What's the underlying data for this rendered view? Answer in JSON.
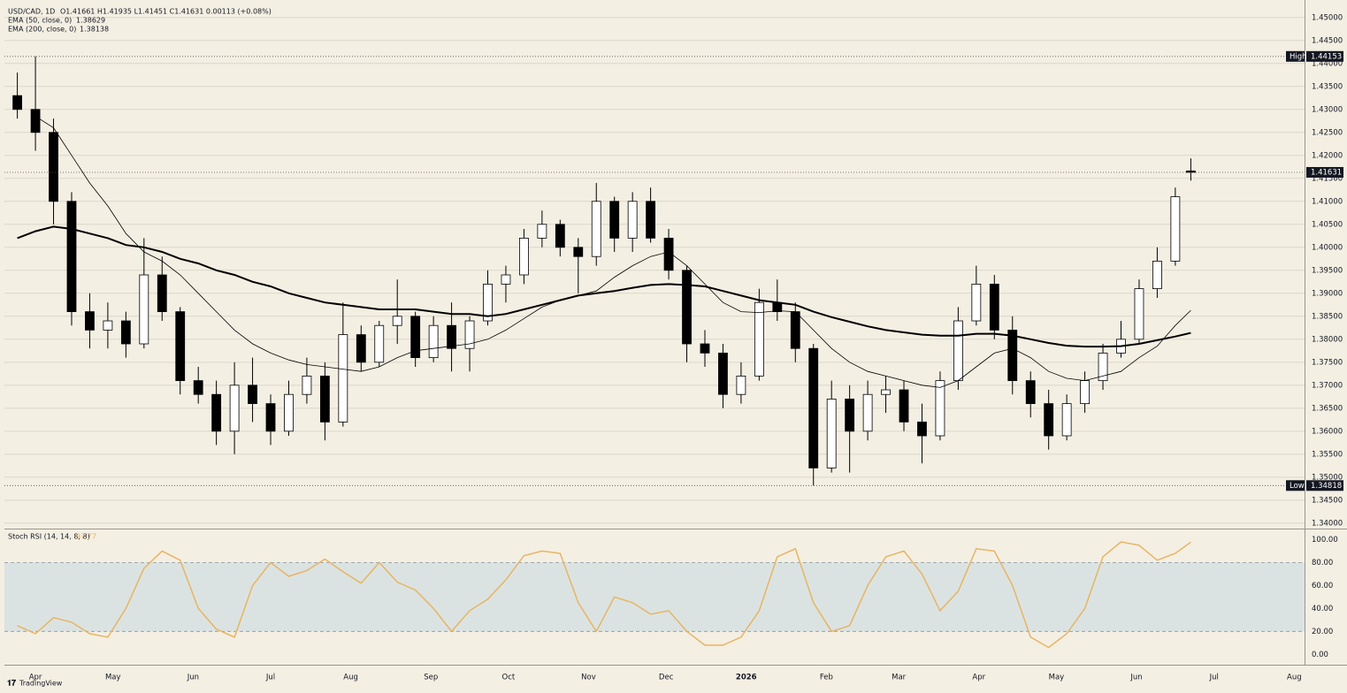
{
  "header": {
    "symbol": "USD/CAD, 1D",
    "ohlc": "O1.41661 H1.41935 L1.41451 C1.41631 0.00113 (+0.08%)",
    "brand": "TradingView"
  },
  "chart_data": [
    {
      "type": "candlestick",
      "x": [
        -7,
        0,
        7,
        14,
        21,
        28,
        35,
        42,
        49,
        56,
        63,
        70,
        77,
        84,
        91,
        98,
        105,
        112,
        119,
        126,
        133,
        140,
        147,
        154,
        161,
        168,
        175,
        182,
        189,
        196,
        203,
        210,
        217,
        224,
        231,
        238,
        245,
        252,
        259,
        266,
        273,
        280,
        287,
        294,
        301,
        308,
        315,
        322,
        329,
        336,
        343,
        350,
        357,
        364,
        371,
        378,
        385,
        392,
        399,
        406,
        413,
        420,
        427,
        434,
        441,
        447
      ],
      "open": [
        1.433,
        1.43,
        1.425,
        1.41,
        1.386,
        1.382,
        1.384,
        1.379,
        1.394,
        1.386,
        1.371,
        1.368,
        1.36,
        1.37,
        1.366,
        1.36,
        1.368,
        1.372,
        1.362,
        1.381,
        1.375,
        1.383,
        1.385,
        1.376,
        1.383,
        1.378,
        1.384,
        1.392,
        1.394,
        1.402,
        1.405,
        1.4,
        1.398,
        1.41,
        1.402,
        1.41,
        1.402,
        1.395,
        1.379,
        1.377,
        1.368,
        1.372,
        1.388,
        1.386,
        1.378,
        1.352,
        1.367,
        1.36,
        1.368,
        1.369,
        1.362,
        1.359,
        1.371,
        1.384,
        1.392,
        1.382,
        1.371,
        1.366,
        1.359,
        1.366,
        1.371,
        1.377,
        1.38,
        1.391,
        1.397,
        1.41661
      ],
      "high": [
        1.438,
        1.44153,
        1.428,
        1.412,
        1.39,
        1.388,
        1.386,
        1.402,
        1.398,
        1.387,
        1.374,
        1.371,
        1.375,
        1.376,
        1.368,
        1.371,
        1.376,
        1.375,
        1.388,
        1.383,
        1.384,
        1.393,
        1.386,
        1.385,
        1.388,
        1.385,
        1.395,
        1.396,
        1.404,
        1.408,
        1.406,
        1.402,
        1.414,
        1.411,
        1.412,
        1.413,
        1.404,
        1.396,
        1.382,
        1.379,
        1.375,
        1.391,
        1.393,
        1.388,
        1.379,
        1.371,
        1.37,
        1.371,
        1.372,
        1.371,
        1.366,
        1.373,
        1.387,
        1.396,
        1.394,
        1.385,
        1.373,
        1.369,
        1.368,
        1.373,
        1.379,
        1.384,
        1.393,
        1.4,
        1.413,
        1.41935
      ],
      "low": [
        1.428,
        1.421,
        1.405,
        1.383,
        1.378,
        1.378,
        1.376,
        1.378,
        1.384,
        1.368,
        1.366,
        1.357,
        1.355,
        1.362,
        1.357,
        1.359,
        1.366,
        1.358,
        1.361,
        1.373,
        1.374,
        1.379,
        1.374,
        1.375,
        1.373,
        1.373,
        1.383,
        1.388,
        1.392,
        1.4,
        1.398,
        1.39,
        1.396,
        1.399,
        1.399,
        1.401,
        1.393,
        1.375,
        1.374,
        1.365,
        1.366,
        1.371,
        1.384,
        1.375,
        1.34818,
        1.351,
        1.351,
        1.358,
        1.364,
        1.36,
        1.353,
        1.358,
        1.369,
        1.383,
        1.38,
        1.368,
        1.363,
        1.356,
        1.358,
        1.364,
        1.369,
        1.376,
        1.379,
        1.389,
        1.396,
        1.41451
      ],
      "close": [
        1.43,
        1.425,
        1.41,
        1.386,
        1.382,
        1.384,
        1.379,
        1.394,
        1.386,
        1.371,
        1.368,
        1.36,
        1.37,
        1.366,
        1.36,
        1.368,
        1.372,
        1.362,
        1.381,
        1.375,
        1.383,
        1.385,
        1.376,
        1.383,
        1.378,
        1.384,
        1.392,
        1.394,
        1.402,
        1.405,
        1.4,
        1.398,
        1.41,
        1.402,
        1.41,
        1.402,
        1.395,
        1.379,
        1.377,
        1.368,
        1.372,
        1.388,
        1.386,
        1.378,
        1.352,
        1.367,
        1.36,
        1.368,
        1.369,
        1.362,
        1.359,
        1.371,
        1.384,
        1.392,
        1.382,
        1.371,
        1.366,
        1.359,
        1.366,
        1.371,
        1.377,
        1.38,
        1.391,
        1.397,
        1.411,
        1.41631
      ],
      "up_color": "#ffffff",
      "down_color": "#000000",
      "series": [
        {
          "name": "EMA (50, close, 0)",
          "color": "#000000",
          "width": 0.8,
          "values": [
            null,
            1.4285,
            1.426,
            1.42,
            1.414,
            1.409,
            1.403,
            1.399,
            1.397,
            1.394,
            1.39,
            1.386,
            1.382,
            1.379,
            1.377,
            1.3755,
            1.3745,
            1.374,
            1.3735,
            1.373,
            1.374,
            1.376,
            1.3775,
            1.378,
            1.3785,
            1.379,
            1.38,
            1.382,
            1.3845,
            1.387,
            1.3885,
            1.3895,
            1.3905,
            1.3935,
            1.396,
            1.398,
            1.399,
            1.396,
            1.392,
            1.388,
            1.386,
            1.3858,
            1.3862,
            1.386,
            1.382,
            1.378,
            1.375,
            1.373,
            1.372,
            1.371,
            1.37,
            1.3695,
            1.371,
            1.374,
            1.377,
            1.378,
            1.376,
            1.373,
            1.3715,
            1.371,
            1.372,
            1.373,
            1.376,
            1.3785,
            1.383,
            1.38629
          ]
        },
        {
          "name": "EMA (200, close, 0)",
          "color": "#000000",
          "width": 2,
          "values": [
            1.402,
            1.4035,
            1.4045,
            1.404,
            1.403,
            1.402,
            1.4005,
            1.4,
            1.399,
            1.3975,
            1.3965,
            1.395,
            1.394,
            1.3925,
            1.3915,
            1.39,
            1.389,
            1.388,
            1.3875,
            1.387,
            1.3865,
            1.3865,
            1.3865,
            1.386,
            1.3855,
            1.3855,
            1.385,
            1.3855,
            1.3865,
            1.3875,
            1.3885,
            1.3895,
            1.39,
            1.3905,
            1.3912,
            1.3918,
            1.392,
            1.3918,
            1.3915,
            1.3905,
            1.3895,
            1.3885,
            1.388,
            1.3875,
            1.386,
            1.3848,
            1.3838,
            1.3828,
            1.382,
            1.3815,
            1.381,
            1.3808,
            1.3808,
            1.3812,
            1.3812,
            1.3808,
            1.38,
            1.3792,
            1.3786,
            1.3784,
            1.3784,
            1.3785,
            1.379,
            1.3798,
            1.3806,
            1.38138
          ]
        }
      ],
      "xlim": [
        -12,
        491
      ],
      "ylim": [
        1.3392,
        1.4538
      ],
      "yticks": [
        {
          "value": 1.34,
          "label": "1.34000"
        },
        {
          "value": 1.345,
          "label": "1.34500"
        },
        {
          "value": 1.35,
          "label": "1.35000"
        },
        {
          "value": 1.355,
          "label": "1.35500"
        },
        {
          "value": 1.36,
          "label": "1.36000"
        },
        {
          "value": 1.365,
          "label": "1.36500"
        },
        {
          "value": 1.37,
          "label": "1.37000"
        },
        {
          "value": 1.375,
          "label": "1.37500"
        },
        {
          "value": 1.38,
          "label": "1.38000"
        },
        {
          "value": 1.385,
          "label": "1.38500"
        },
        {
          "value": 1.39,
          "label": "1.39000"
        },
        {
          "value": 1.395,
          "label": "1.39500"
        },
        {
          "value": 1.4,
          "label": "1.40000"
        },
        {
          "value": 1.405,
          "label": "1.40500"
        },
        {
          "value": 1.41,
          "label": "1.41000"
        },
        {
          "value": 1.415,
          "label": "1.41500"
        },
        {
          "value": 1.42,
          "label": "1.42000"
        },
        {
          "value": 1.425,
          "label": "1.42500"
        },
        {
          "value": 1.43,
          "label": "1.43000"
        },
        {
          "value": 1.435,
          "label": "1.43500"
        },
        {
          "value": 1.44,
          "label": "1.44000"
        },
        {
          "value": 1.445,
          "label": "1.44500"
        },
        {
          "value": 1.45,
          "label": "1.45000"
        }
      ],
      "grid": true,
      "high_marker": {
        "label": "High",
        "value": 1.44153
      },
      "low_marker": {
        "label": "Low",
        "value": 1.34818
      },
      "last_price": 1.41631
    },
    {
      "type": "line",
      "title": "Stoch RSI (14, 14, 8, 8)",
      "x": [
        -7,
        0,
        7,
        14,
        21,
        28,
        35,
        42,
        49,
        56,
        63,
        70,
        77,
        84,
        91,
        98,
        105,
        112,
        119,
        126,
        133,
        140,
        147,
        154,
        161,
        168,
        175,
        182,
        189,
        196,
        203,
        210,
        217,
        224,
        231,
        238,
        245,
        252,
        259,
        266,
        273,
        280,
        287,
        294,
        301,
        308,
        315,
        322,
        329,
        336,
        343,
        350,
        357,
        364,
        371,
        378,
        385,
        392,
        399,
        406,
        413,
        420,
        427,
        434,
        441,
        447
      ],
      "series": [
        {
          "color": "#e8b462",
          "values": [
            25,
            18,
            32,
            28,
            18,
            15,
            40,
            75,
            90,
            82,
            40,
            22,
            15,
            60,
            80,
            68,
            73,
            83,
            72,
            62,
            80,
            63,
            56,
            40,
            20,
            38,
            48,
            65,
            86,
            90,
            88,
            45,
            20,
            50,
            45,
            35,
            38,
            20,
            8,
            8,
            15,
            38,
            85,
            92,
            45,
            20,
            25,
            60,
            85,
            90,
            70,
            38,
            55,
            92,
            90,
            60,
            15,
            6,
            18,
            40,
            85,
            98,
            95,
            82,
            88,
            97.77
          ]
        }
      ],
      "xlim": [
        -12,
        491
      ],
      "ylim": [
        -9,
        108
      ],
      "yticks": [
        {
          "value": 0,
          "label": "0.00"
        },
        {
          "value": 20,
          "label": "20.00"
        },
        {
          "value": 40,
          "label": "40.00"
        },
        {
          "value": 60,
          "label": "60.00"
        },
        {
          "value": 80,
          "label": "80.00"
        },
        {
          "value": 100,
          "label": "100.00"
        }
      ],
      "band": [
        20,
        80
      ],
      "band_color": "#dbe3e2",
      "xticks": [
        {
          "value": 0,
          "label": "Apr"
        },
        {
          "value": 30,
          "label": "May"
        },
        {
          "value": 61,
          "label": "Jun"
        },
        {
          "value": 91,
          "label": "Jul"
        },
        {
          "value": 122,
          "label": "Aug"
        },
        {
          "value": 153,
          "label": "Sep"
        },
        {
          "value": 183,
          "label": "Oct"
        },
        {
          "value": 214,
          "label": "Nov"
        },
        {
          "value": 244,
          "label": "Dec"
        },
        {
          "value": 275,
          "label": "2026"
        },
        {
          "value": 306,
          "label": "Feb"
        },
        {
          "value": 334,
          "label": "Mar"
        },
        {
          "value": 365,
          "label": "Apr"
        },
        {
          "value": 395,
          "label": "May"
        },
        {
          "value": 426,
          "label": "Jun"
        },
        {
          "value": 456,
          "label": "Jul"
        },
        {
          "value": 487,
          "label": "Aug"
        }
      ]
    }
  ]
}
